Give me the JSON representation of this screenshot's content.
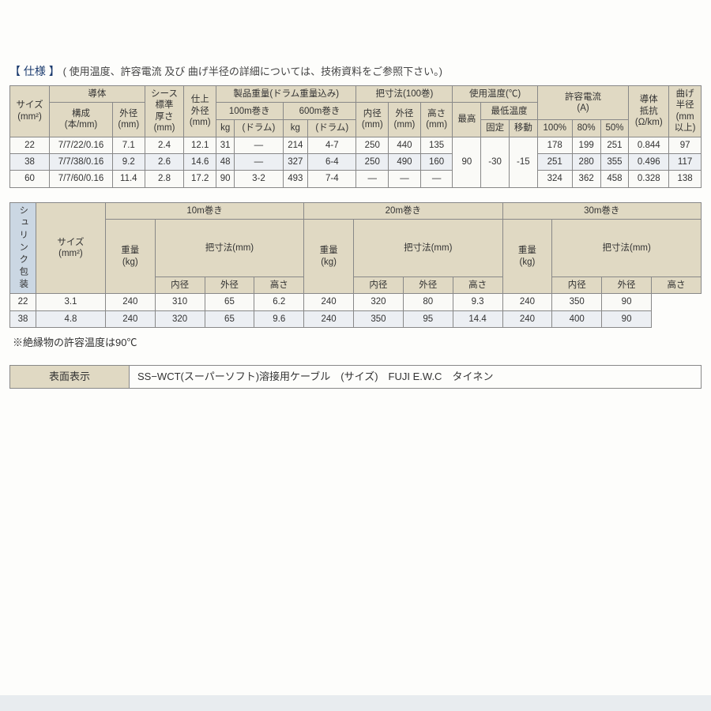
{
  "titleBracket": "【 仕様 】",
  "titleNote": "( 使用温度、許容電流 及び 曲げ半径の詳細については、技術資料をご参照下さい。)",
  "t1": {
    "h": {
      "size": "サイズ\n(mm²)",
      "conductor": "導体",
      "construction": "構成\n(本/mm)",
      "od1": "外径\n(mm)",
      "sheath": "シース\n標準\n厚さ\n(mm)",
      "finishOD": "仕上\n外径\n(mm)",
      "weight": "製品重量(ドラム重量込み)",
      "w100": "100m巻き",
      "w600": "600m巻き",
      "kg": "kg",
      "drum": "(ドラム)",
      "handle": "把寸法(100巻)",
      "id": "内径\n(mm)",
      "od": "外径\n(mm)",
      "ht": "高さ\n(mm)",
      "temp": "使用温度(℃)",
      "max": "最高",
      "minTemp": "最低温度",
      "fixed": "固定",
      "move": "移動",
      "allow": "許容電流\n(A)",
      "p100": "100%",
      "p80": "80%",
      "p50": "50%",
      "resist": "導体\n抵抗\n(Ω/km)",
      "bend": "曲げ\n半径\n(mm\n以上)"
    },
    "rows": [
      {
        "size": "22",
        "cons": "7/7/22/0.16",
        "od1": "7.1",
        "sh": "2.4",
        "fod": "12.1",
        "kg1": "31",
        "dr1": "—",
        "kg6": "214",
        "dr6": "4-7",
        "hid": "250",
        "hod": "440",
        "hht": "135",
        "a100": "178",
        "a80": "199",
        "a50": "251",
        "res": "0.844",
        "bend": "97"
      },
      {
        "size": "38",
        "cons": "7/7/38/0.16",
        "od1": "9.2",
        "sh": "2.6",
        "fod": "14.6",
        "kg1": "48",
        "dr1": "—",
        "kg6": "327",
        "dr6": "6-4",
        "hid": "250",
        "hod": "490",
        "hht": "160",
        "a100": "251",
        "a80": "280",
        "a50": "355",
        "res": "0.496",
        "bend": "117"
      },
      {
        "size": "60",
        "cons": "7/7/60/0.16",
        "od1": "11.4",
        "sh": "2.8",
        "fod": "17.2",
        "kg1": "90",
        "dr1": "3-2",
        "kg6": "493",
        "dr6": "7-4",
        "hid": "—",
        "hod": "—",
        "hht": "—",
        "a100": "324",
        "a80": "362",
        "a50": "458",
        "res": "0.328",
        "bend": "138"
      }
    ],
    "tempMax": "90",
    "tempFixed": "-30",
    "tempMove": "-15"
  },
  "t2": {
    "sideLabel": "シュリンク包装",
    "h": {
      "size": "サイズ\n(mm²)",
      "w10": "10m巻き",
      "w20": "20m巻き",
      "w30": "30m巻き",
      "weight": "重量\n(kg)",
      "handle": "把寸法(mm)",
      "id": "内径",
      "od": "外径",
      "ht": "高さ"
    },
    "rows": [
      {
        "size": "22",
        "w10": "3.1",
        "i10": "240",
        "o10": "310",
        "h10": "65",
        "w20": "6.2",
        "i20": "240",
        "o20": "320",
        "h20": "80",
        "w30": "9.3",
        "i30": "240",
        "o30": "350",
        "h30": "90"
      },
      {
        "size": "38",
        "w10": "4.8",
        "i10": "240",
        "o10": "320",
        "h10": "65",
        "w20": "9.6",
        "i20": "240",
        "o20": "350",
        "h20": "95",
        "w30": "14.4",
        "i30": "240",
        "o30": "400",
        "h30": "90"
      }
    ]
  },
  "footnote": "※絶縁物の許容温度は90℃",
  "t3": {
    "label": "表面表示",
    "value": "SS−WCT(スーパーソフト)溶接用ケーブル　(サイズ)　FUJI E.W.C　タイネン"
  }
}
